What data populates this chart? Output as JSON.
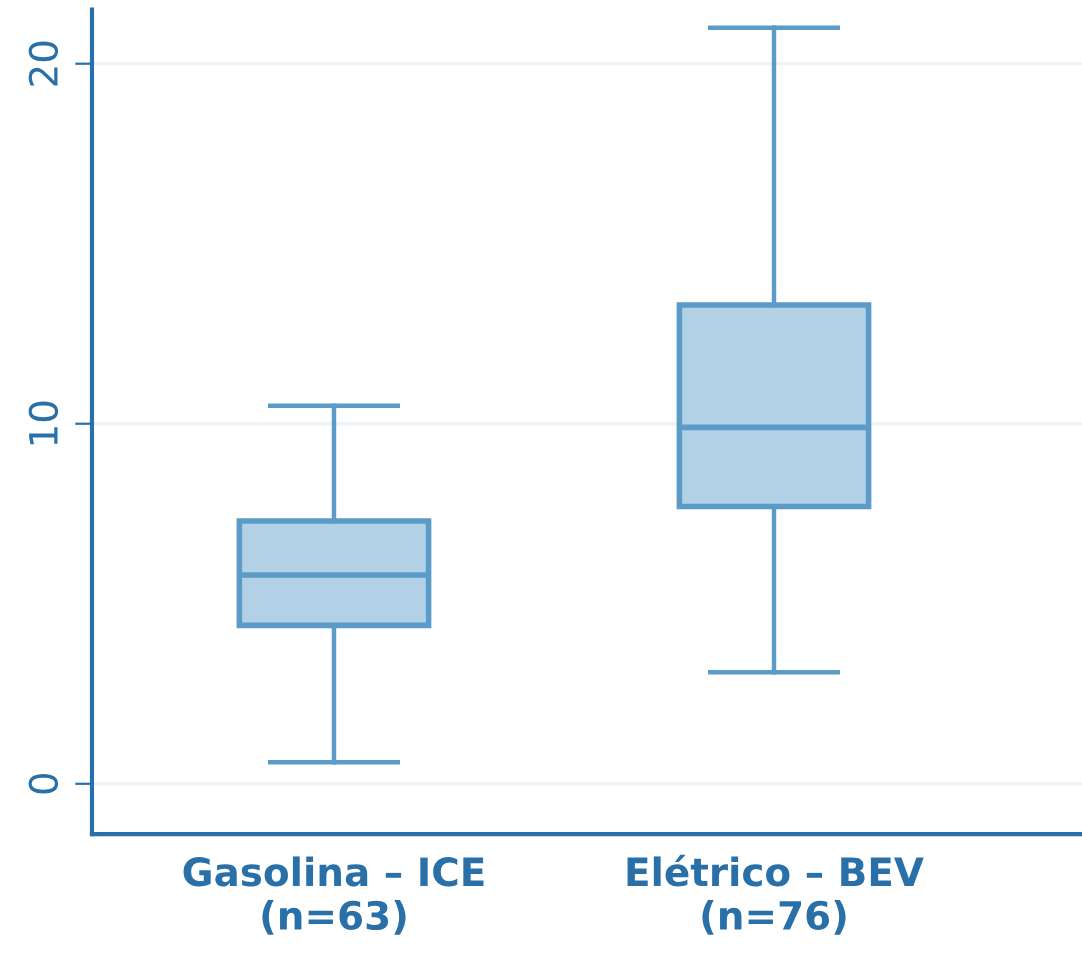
{
  "chart_data": {
    "type": "box",
    "categories": [
      "Gasolina – ICE\n(n=63)",
      "Elétrico – BEV\n(n=76)"
    ],
    "boxes": [
      {
        "low": 0.6,
        "q1": 4.4,
        "median": 5.8,
        "q3": 7.3,
        "high": 10.5
      },
      {
        "low": 3.1,
        "q1": 7.7,
        "median": 9.9,
        "q3": 13.3,
        "high": 21.0
      }
    ],
    "color": "#b3d1e6",
    "ylim": [
      -1.4,
      21.5
    ],
    "yticks": [
      0,
      10,
      20
    ],
    "grid": "y"
  }
}
